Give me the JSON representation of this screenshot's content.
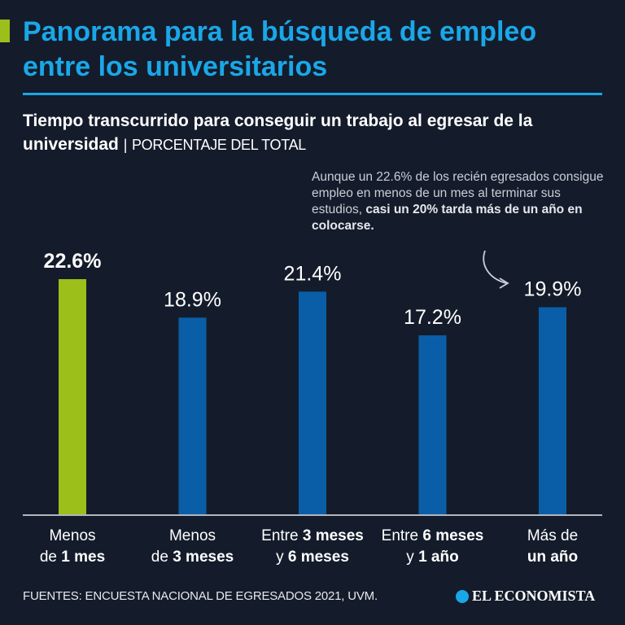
{
  "header": {
    "title": "Panorama para la búsqueda de empleo entre los universitarios",
    "accent_color": "#9cbf1a"
  },
  "subtitle": {
    "main": "Tiempo transcurrido para conseguir un trabajo al egresar de la universidad",
    "separator": "|",
    "unit": "PORCENTAJE DEL TOTAL"
  },
  "annotation": {
    "text": "Aunque un 22.6% de los recién egresados consigue empleo en menos de un mes al terminar sus estudios,",
    "bold": "casi un 20% tarda más de un año en colocarse.",
    "arrow_icon": "curved-arrow-icon"
  },
  "chart_data": {
    "type": "bar",
    "categories": [
      "Menos de 1 mes",
      "Menos de 3 meses",
      "Entre 3 meses y 6 meses",
      "Entre 6 meses y 1 año",
      "Más de un año"
    ],
    "category_parts": [
      [
        [
          {
            "t": "Menos",
            "b": false
          }
        ],
        [
          {
            "t": "de ",
            "b": false
          },
          {
            "t": "1 mes",
            "b": true
          }
        ]
      ],
      [
        [
          {
            "t": "Menos",
            "b": false
          }
        ],
        [
          {
            "t": "de ",
            "b": false
          },
          {
            "t": "3 meses",
            "b": true
          }
        ]
      ],
      [
        [
          {
            "t": "Entre ",
            "b": false
          },
          {
            "t": "3 meses",
            "b": true
          }
        ],
        [
          {
            "t": "y ",
            "b": false
          },
          {
            "t": "6 meses",
            "b": true
          }
        ]
      ],
      [
        [
          {
            "t": "Entre ",
            "b": false
          },
          {
            "t": "6 meses",
            "b": true
          }
        ],
        [
          {
            "t": "y ",
            "b": false
          },
          {
            "t": "1 año",
            "b": true
          }
        ]
      ],
      [
        [
          {
            "t": "Más de",
            "b": false
          }
        ],
        [
          {
            "t": "un año",
            "b": true
          }
        ]
      ]
    ],
    "values": [
      22.6,
      18.9,
      21.4,
      17.2,
      19.9
    ],
    "data_labels": [
      "22.6%",
      "18.9%",
      "21.4%",
      "17.2%",
      "19.9%"
    ],
    "highlight_index": 0,
    "colors": {
      "highlight": "#9cbf1a",
      "default": "#0a5ea8"
    },
    "ylim": [
      0,
      25
    ],
    "grid": false
  },
  "footer": {
    "source": "FUENTES: ENCUESTA NACIONAL DE EGRESADOS 2021, UVM.",
    "logo": "EL ECONOMISTA"
  }
}
